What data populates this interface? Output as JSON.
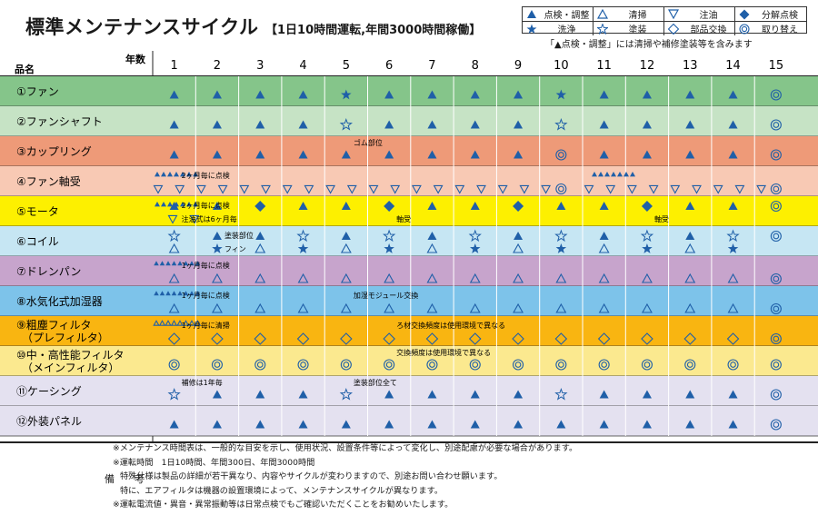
{
  "header": {
    "title": "標準メンテナンスサイクル",
    "subtitle": "【1日10時間運転,年間3000時間稼働】"
  },
  "legend": {
    "items": [
      {
        "icon": "triangle-filled",
        "label": "点検・調整"
      },
      {
        "icon": "triangle-outline",
        "label": "清掃"
      },
      {
        "icon": "down-triangle-outline",
        "label": "注油"
      },
      {
        "icon": "diamond-filled",
        "label": "分解点検"
      },
      {
        "icon": "star-filled",
        "label": "洗浄"
      },
      {
        "icon": "star-outline",
        "label": "塗装"
      },
      {
        "icon": "diamond-outline",
        "label": "部品交換"
      },
      {
        "icon": "double-circle",
        "label": "取り替え"
      }
    ],
    "note": "「▲点検・調整」には清掃や補修塗装等を含みます"
  },
  "colors": {
    "symbol": "#1f5fa8",
    "grid_line": "#ffffff",
    "border": "#222222"
  },
  "table": {
    "corner_label_years": "年数",
    "corner_label_item": "品名",
    "years": [
      "1",
      "2",
      "3",
      "4",
      "5",
      "6",
      "7",
      "8",
      "9",
      "10",
      "11",
      "12",
      "13",
      "14",
      "15"
    ],
    "rows": [
      {
        "name": "①ファン",
        "color": "#85c58a",
        "lines": [
          {
            "cells": [
              "tri",
              "tri",
              "tri",
              "tri",
              "star",
              "tri",
              "tri",
              "tri",
              "tri",
              "star",
              "tri",
              "tri",
              "tri",
              "tri",
              "dcircle"
            ]
          }
        ]
      },
      {
        "name": "②ファンシャフト",
        "color": "#c6e3c5",
        "lines": [
          {
            "cells": [
              "tri",
              "tri",
              "tri",
              "tri",
              "staro",
              "tri",
              "tri",
              "tri",
              "tri",
              "staro",
              "tri",
              "tri",
              "tri",
              "tri",
              "dcircle"
            ]
          }
        ]
      },
      {
        "name": "③カップリング",
        "color": "#ee9a78",
        "lines": [
          {
            "cells": [
              "tri",
              "tri",
              "tri",
              "tri",
              "tri",
              "tri",
              "tri",
              "tri",
              "tri",
              "dcircle",
              "tri",
              "tri",
              "tri",
              "tri",
              "dcircle"
            ]
          }
        ]
      },
      {
        "name": "④ファン軸受",
        "color": "#f8c9b4",
        "lines": [
          {
            "cells": [
              "",
              "",
              "",
              "",
              "",
              "",
              "",
              "",
              "",
              "",
              "",
              "",
              "",
              "",
              ""
            ]
          },
          {
            "cells": [
              "",
              "",
              "",
              "",
              "",
              "",
              "",
              "",
              "",
              "dcircle",
              "",
              "",
              "",
              "",
              "dcircle"
            ]
          }
        ]
      },
      {
        "name": "⑤モータ",
        "color": "#fdf000",
        "lines": [
          {
            "cells": [
              "tri",
              "tri",
              "dia",
              "tri",
              "tri",
              "dia",
              "tri",
              "tri",
              "dia",
              "tri",
              "tri",
              "dia",
              "tri",
              "tri",
              "dcircle"
            ]
          },
          {
            "cells": [
              "",
              "",
              "",
              "",
              "",
              "",
              "",
              "",
              "",
              "",
              "",
              "",
              "",
              "",
              ""
            ]
          }
        ]
      },
      {
        "name": "⑥コイル",
        "color": "#c6e6f3",
        "lines": [
          {
            "cells": [
              "staro",
              "tri",
              "tri",
              "staro",
              "tri",
              "staro",
              "tri",
              "staro",
              "tri",
              "staro",
              "tri",
              "staro",
              "tri",
              "staro",
              "dcircle"
            ]
          },
          {
            "cells": [
              "trio",
              "star",
              "trio",
              "star",
              "trio",
              "star",
              "trio",
              "star",
              "trio",
              "star",
              "trio",
              "star",
              "trio",
              "star",
              ""
            ]
          }
        ]
      },
      {
        "name": "⑦ドレンパン",
        "color": "#c7a4cc",
        "lines": [
          {
            "cells": [
              "",
              "",
              "",
              "",
              "",
              "",
              "",
              "",
              "",
              "",
              "",
              "",
              "",
              "",
              ""
            ]
          },
          {
            "cells": [
              "trio",
              "trio",
              "trio",
              "trio",
              "trio",
              "trio",
              "trio",
              "trio",
              "trio",
              "trio",
              "trio",
              "trio",
              "trio",
              "trio",
              "dcircle"
            ]
          }
        ]
      },
      {
        "name": "⑧水気化式加湿器",
        "color": "#7dc3ea",
        "lines": [
          {
            "cells": [
              "",
              "",
              "",
              "",
              "",
              "",
              "",
              "",
              "",
              "",
              "",
              "",
              "",
              "",
              ""
            ]
          },
          {
            "cells": [
              "trio",
              "trio",
              "trio",
              "trio",
              "trio",
              "trio",
              "trio",
              "trio",
              "trio",
              "trio",
              "trio",
              "trio",
              "trio",
              "trio",
              "dcircle"
            ]
          }
        ]
      },
      {
        "name": "⑨粗塵フィルタ\n（プレフィルタ）",
        "color": "#f9b511",
        "lines": [
          {
            "cells": [
              "",
              "",
              "",
              "",
              "",
              "",
              "",
              "",
              "",
              "",
              "",
              "",
              "",
              "",
              ""
            ]
          },
          {
            "cells": [
              "dia_o",
              "dia_o",
              "dia_o",
              "dia_o",
              "dia_o",
              "dia_o",
              "dia_o",
              "dia_o",
              "dia_o",
              "dia_o",
              "dia_o",
              "dia_o",
              "dia_o",
              "dia_o",
              "dcircle"
            ]
          }
        ]
      },
      {
        "name": "⑩中・高性能フィルタ\n（メインフィルタ）",
        "color": "#fbe98f",
        "lines": [
          {
            "cells": [
              "dcircle",
              "dcircle",
              "dcircle",
              "dcircle",
              "dcircle",
              "dcircle",
              "dcircle",
              "dcircle",
              "dcircle",
              "dcircle",
              "dcircle",
              "dcircle",
              "dcircle",
              "dcircle",
              "dcircle"
            ]
          }
        ]
      },
      {
        "name": "⑪ケーシング",
        "color": "#e4e1f0",
        "lines": [
          {
            "cells": [
              "staro",
              "tri",
              "tri",
              "tri",
              "staro",
              "tri",
              "tri",
              "tri",
              "tri",
              "staro",
              "tri",
              "tri",
              "tri",
              "tri",
              "dcircle"
            ]
          }
        ]
      },
      {
        "name": "⑫外装パネル",
        "color": "#e4e1f0",
        "lines": [
          {
            "cells": [
              "tri",
              "tri",
              "tri",
              "tri",
              "tri",
              "tri",
              "tri",
              "tri",
              "tri",
              "tri",
              "tri",
              "tri",
              "tri",
              "tri",
              "dcircle"
            ]
          }
        ]
      }
    ],
    "annotations": [
      {
        "row": 3,
        "line": 0,
        "year": 1,
        "text": "2ヶ月毎に点検"
      },
      {
        "row": 4,
        "line": 0,
        "year": 1,
        "text": "2ヶ月毎に点検"
      },
      {
        "row": 4,
        "line": 1,
        "year": 1,
        "text": "注油式は6ヶ月毎"
      },
      {
        "row": 4,
        "line": 1,
        "year": 6,
        "text": "軸受"
      },
      {
        "row": 4,
        "line": 1,
        "year": 12,
        "text": "軸受"
      },
      {
        "row": 5,
        "line": 0,
        "year": 2,
        "text": "塗装部位"
      },
      {
        "row": 5,
        "line": 1,
        "year": 2,
        "text": "フィン"
      },
      {
        "row": 6,
        "line": 0,
        "year": 1,
        "text": "1ヶ月毎に点検"
      },
      {
        "row": 7,
        "line": 0,
        "year": 1,
        "text": "1ヶ月毎に点検"
      },
      {
        "row": 7,
        "line": 0,
        "year": 5,
        "text": "加湿モジュール交換"
      },
      {
        "row": 8,
        "line": 0,
        "year": 1,
        "text": "1ヶ月毎に清掃"
      },
      {
        "row": 8,
        "line": 0,
        "year": 6,
        "text": "ろ材交換頻度は使用環境で異なる"
      },
      {
        "row": 9,
        "line": 0,
        "year": 6,
        "text": "交換頻度は使用環境で異なる"
      },
      {
        "row": 10,
        "line": 0,
        "year": 1,
        "text": "補修は1年毎"
      },
      {
        "row": 10,
        "line": 0,
        "year": 5,
        "text": "塗装部位全て"
      },
      {
        "row": 2,
        "line": 0,
        "year": 5,
        "text": "ゴム部位"
      }
    ]
  },
  "remarks": {
    "label": "備　　考",
    "lines": [
      "※メンテナンス時間表は、一般的な目安を示し、使用状況、設置条件等によって変化し、別途配慮が必要な場合があります。",
      "※運転時間　1日10時間、年間300日、年間3000時間",
      "特殊仕様は製品の詳細が若干異なり、内容やサイクルが変わりますので、別途お問い合わせ願います。",
      "特に、エアフィルタは機器の設置環境によって、メンテナンスサイクルが異なります。",
      "※運転電流値・異音・異常振動等は日常点検でもご確認いただくことをお勧めいたします。"
    ]
  }
}
